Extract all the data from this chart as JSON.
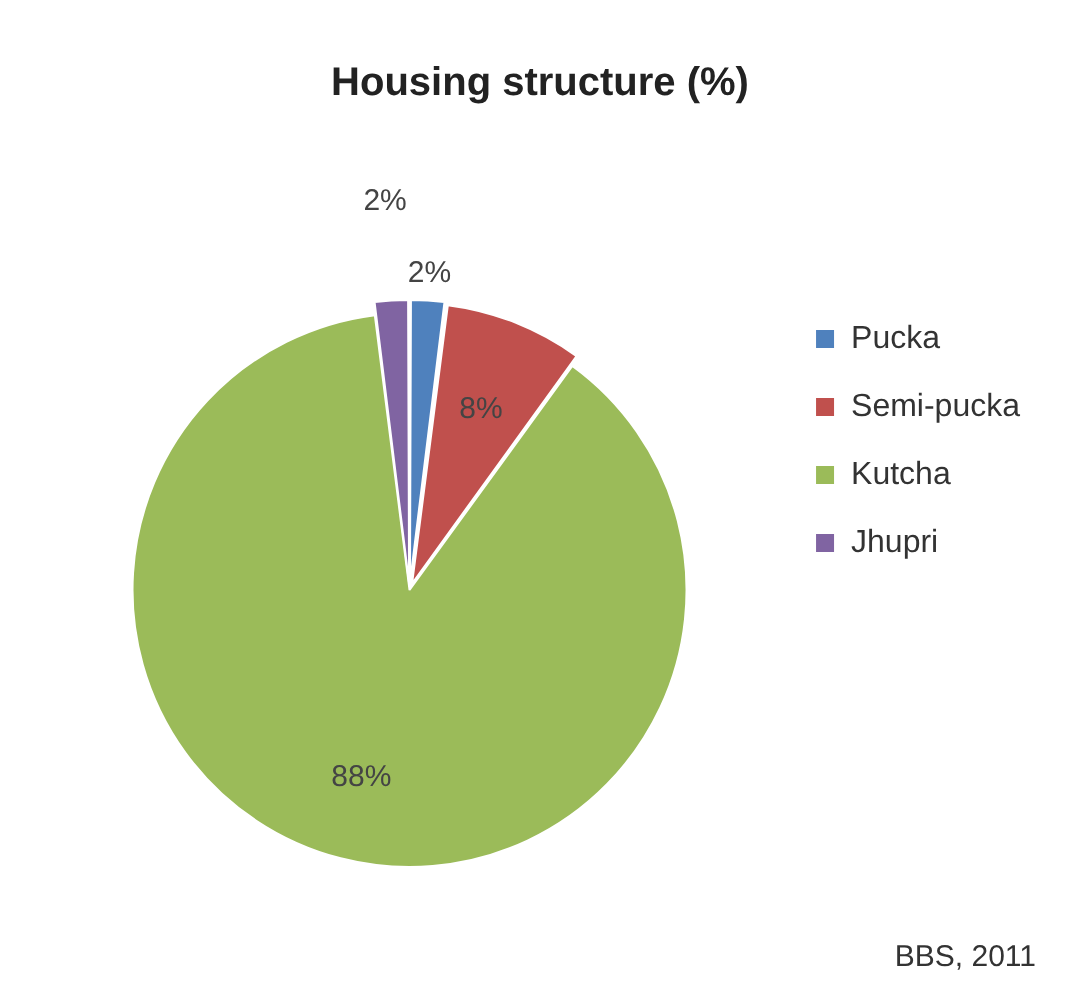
{
  "chart_data": {
    "type": "pie",
    "title": "Housing structure (%)",
    "categories": [
      "Pucka",
      "Semi-pucka",
      "Kutcha",
      "Jhupri"
    ],
    "values": [
      2,
      8,
      88,
      2
    ],
    "colors": [
      "#4f81bd",
      "#c0504d",
      "#9bbb59",
      "#8064a2"
    ],
    "value_labels": [
      "2%",
      "8%",
      "88%",
      "2%"
    ],
    "legend": "right",
    "annotations": [
      "BBS, 2011"
    ]
  }
}
